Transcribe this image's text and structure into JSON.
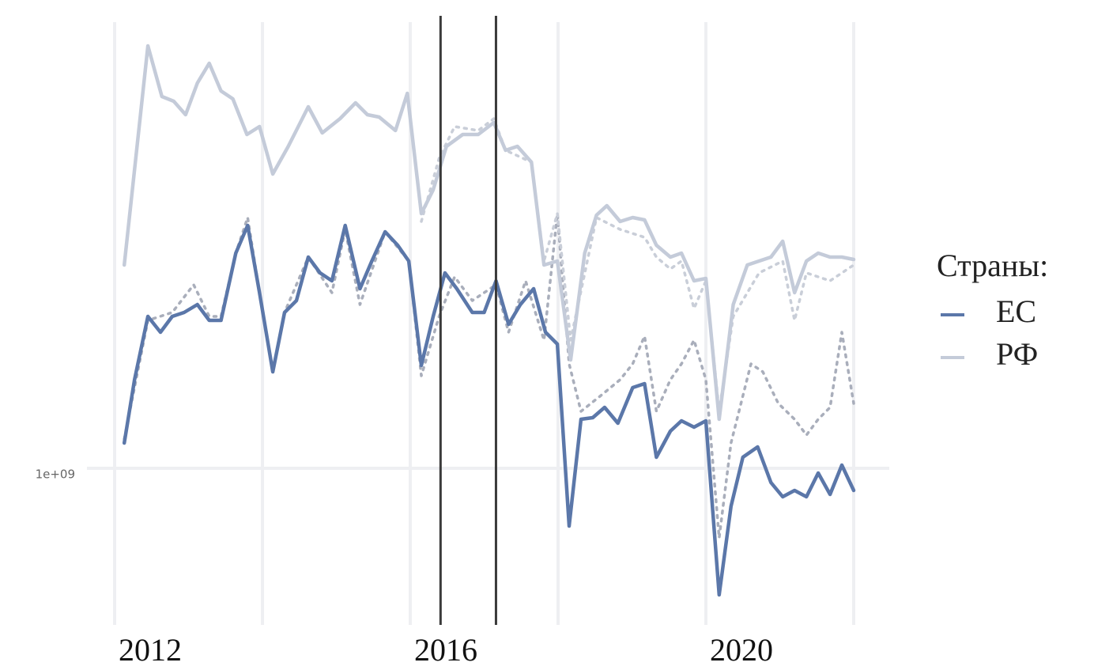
{
  "chart_data": {
    "type": "line",
    "legend_title": "Страны:",
    "legend": "right",
    "xlim": [
      2011.8,
      2022.5
    ],
    "ylim": [
      600000000.0,
      2100000000.0
    ],
    "xticks": [
      2012,
      2016,
      2020
    ],
    "xgrid": [
      2012,
      2014,
      2016,
      2018,
      2020,
      2022
    ],
    "yticks": [
      {
        "value": 1000000000,
        "label": "1e+09"
      }
    ],
    "vlines": [
      2016.41,
      2017.16
    ],
    "vline_color": "#3a3a3a",
    "series": [
      {
        "name": "ЕС",
        "color": "#5b77a9",
        "dash": false,
        "x": [
          2012.13,
          2012.27,
          2012.45,
          2012.62,
          2012.78,
          2012.94,
          2013.12,
          2013.28,
          2013.44,
          2013.64,
          2013.8,
          2013.96,
          2014.14,
          2014.3,
          2014.46,
          2014.62,
          2014.78,
          2014.94,
          2015.12,
          2015.32,
          2015.48,
          2015.66,
          2015.83,
          2015.98,
          2016.15,
          2016.31,
          2016.47,
          2016.63,
          2016.84,
          2017.0,
          2017.16,
          2017.33,
          2017.49,
          2017.67,
          2017.83,
          2017.99,
          2018.15,
          2018.31,
          2018.47,
          2018.63,
          2018.81,
          2019.01,
          2019.17,
          2019.33,
          2019.52,
          2019.67,
          2019.84,
          2020.0,
          2020.18,
          2020.34,
          2020.5,
          2020.7,
          2020.88,
          2021.04,
          2021.2,
          2021.36,
          2021.52,
          2021.68,
          2021.84,
          2022.0
        ],
        "values": [
          1064000000.0,
          1224000000.0,
          1384000000.0,
          1344000000.0,
          1384000000.0,
          1394000000.0,
          1414000000.0,
          1374000000.0,
          1374000000.0,
          1544000000.0,
          1614000000.0,
          1444000000.0,
          1244000000.0,
          1394000000.0,
          1424000000.0,
          1534000000.0,
          1494000000.0,
          1474000000.0,
          1614000000.0,
          1454000000.0,
          1524000000.0,
          1598000000.0,
          1564000000.0,
          1524000000.0,
          1260000000.0,
          1384000000.0,
          1494000000.0,
          1454000000.0,
          1394000000.0,
          1394000000.0,
          1474000000.0,
          1364000000.0,
          1414000000.0,
          1454000000.0,
          1344000000.0,
          1314000000.0,
          854000000.0,
          1124000000.0,
          1128000000.0,
          1154000000.0,
          1114000000.0,
          1204000000.0,
          1214000000.0,
          1028000000.0,
          1094000000.0,
          1120000000.0,
          1104000000.0,
          1120000000.0,
          680000000.0,
          904000000.0,
          1028000000.0,
          1054000000.0,
          964000000.0,
          928000000.0,
          944000000.0,
          928000000.0,
          988000000.0,
          934000000.0,
          1008000000.0,
          944000000.0
        ]
      },
      {
        "name": "РФ",
        "color": "#c4cbd9",
        "dash": false,
        "x": [
          2012.13,
          2012.45,
          2012.64,
          2012.8,
          2012.96,
          2013.12,
          2013.28,
          2013.44,
          2013.6,
          2013.79,
          2013.96,
          2014.14,
          2014.35,
          2014.62,
          2014.81,
          2015.05,
          2015.26,
          2015.42,
          2015.58,
          2015.8,
          2015.96,
          2016.15,
          2016.31,
          2016.49,
          2016.71,
          2016.92,
          2017.13,
          2017.29,
          2017.45,
          2017.64,
          2017.81,
          2017.99,
          2018.17,
          2018.36,
          2018.52,
          2018.66,
          2018.84,
          2019.01,
          2019.17,
          2019.33,
          2019.52,
          2019.67,
          2019.84,
          2020.0,
          2020.18,
          2020.37,
          2020.56,
          2020.72,
          2020.88,
          2021.04,
          2021.2,
          2021.36,
          2021.52,
          2021.68,
          2021.84,
          2022.0
        ],
        "values": [
          1514000000.0,
          2068000000.0,
          1940000000.0,
          1928000000.0,
          1894000000.0,
          1974000000.0,
          2024000000.0,
          1954000000.0,
          1934000000.0,
          1844000000.0,
          1864000000.0,
          1744000000.0,
          1814000000.0,
          1914000000.0,
          1848000000.0,
          1884000000.0,
          1924000000.0,
          1894000000.0,
          1888000000.0,
          1854000000.0,
          1948000000.0,
          1644000000.0,
          1704000000.0,
          1814000000.0,
          1844000000.0,
          1844000000.0,
          1874000000.0,
          1804000000.0,
          1814000000.0,
          1774000000.0,
          1514000000.0,
          1524000000.0,
          1274000000.0,
          1544000000.0,
          1640000000.0,
          1664000000.0,
          1624000000.0,
          1634000000.0,
          1628000000.0,
          1564000000.0,
          1534000000.0,
          1544000000.0,
          1474000000.0,
          1480000000.0,
          1124000000.0,
          1414000000.0,
          1514000000.0,
          1524000000.0,
          1534000000.0,
          1574000000.0,
          1444000000.0,
          1524000000.0,
          1544000000.0,
          1534000000.0,
          1534000000.0,
          1528000000.0
        ]
      },
      {
        "color": "#a9aebb",
        "dash": true,
        "x": [
          2012.13,
          2012.45,
          2012.78,
          2013.07,
          2013.28,
          2013.44,
          2013.64,
          2013.8,
          2013.96,
          2014.14,
          2014.3,
          2014.62,
          2014.94,
          2015.12,
          2015.32,
          2015.66,
          2015.98,
          2016.15,
          2016.39,
          2016.6,
          2016.84,
          2017.16,
          2017.33,
          2017.56,
          2017.81,
          2017.99,
          2018.15,
          2018.31,
          2018.58,
          2018.84,
          2019.01,
          2019.17,
          2019.33,
          2019.52,
          2019.67,
          2019.84,
          2020.0,
          2020.18,
          2020.34,
          2020.61,
          2020.77,
          2020.98,
          2021.2,
          2021.36,
          2021.52,
          2021.68,
          2021.84,
          2022.0
        ],
        "values": [
          1074000000.0,
          1374000000.0,
          1394000000.0,
          1464000000.0,
          1384000000.0,
          1384000000.0,
          1544000000.0,
          1634000000.0,
          1444000000.0,
          1244000000.0,
          1394000000.0,
          1534000000.0,
          1444000000.0,
          1604000000.0,
          1414000000.0,
          1598000000.0,
          1524000000.0,
          1234000000.0,
          1384000000.0,
          1484000000.0,
          1424000000.0,
          1464000000.0,
          1344000000.0,
          1474000000.0,
          1324000000.0,
          1644000000.0,
          1264000000.0,
          1144000000.0,
          1184000000.0,
          1224000000.0,
          1264000000.0,
          1334000000.0,
          1144000000.0,
          1224000000.0,
          1264000000.0,
          1324000000.0,
          1224000000.0,
          824000000.0,
          1064000000.0,
          1264000000.0,
          1244000000.0,
          1164000000.0,
          1124000000.0,
          1084000000.0,
          1124000000.0,
          1154000000.0,
          1344000000.0,
          1164000000.0
        ]
      },
      {
        "color": "#c9ced8",
        "dash": true,
        "x": [
          2016.15,
          2016.39,
          2016.6,
          2016.92,
          2017.13,
          2017.29,
          2017.64,
          2017.81,
          2017.99,
          2018.17,
          2018.52,
          2018.84,
          2019.17,
          2019.33,
          2019.52,
          2019.67,
          2019.84,
          2020.0,
          2020.18,
          2020.37,
          2020.72,
          2021.04,
          2021.2,
          2021.36,
          2021.68,
          2022.0
        ],
        "values": [
          1624000000.0,
          1784000000.0,
          1864000000.0,
          1854000000.0,
          1884000000.0,
          1804000000.0,
          1774000000.0,
          1524000000.0,
          1644000000.0,
          1324000000.0,
          1634000000.0,
          1604000000.0,
          1584000000.0,
          1534000000.0,
          1504000000.0,
          1524000000.0,
          1404000000.0,
          1474000000.0,
          1144000000.0,
          1384000000.0,
          1494000000.0,
          1524000000.0,
          1374000000.0,
          1494000000.0,
          1474000000.0,
          1514000000.0
        ]
      }
    ]
  }
}
